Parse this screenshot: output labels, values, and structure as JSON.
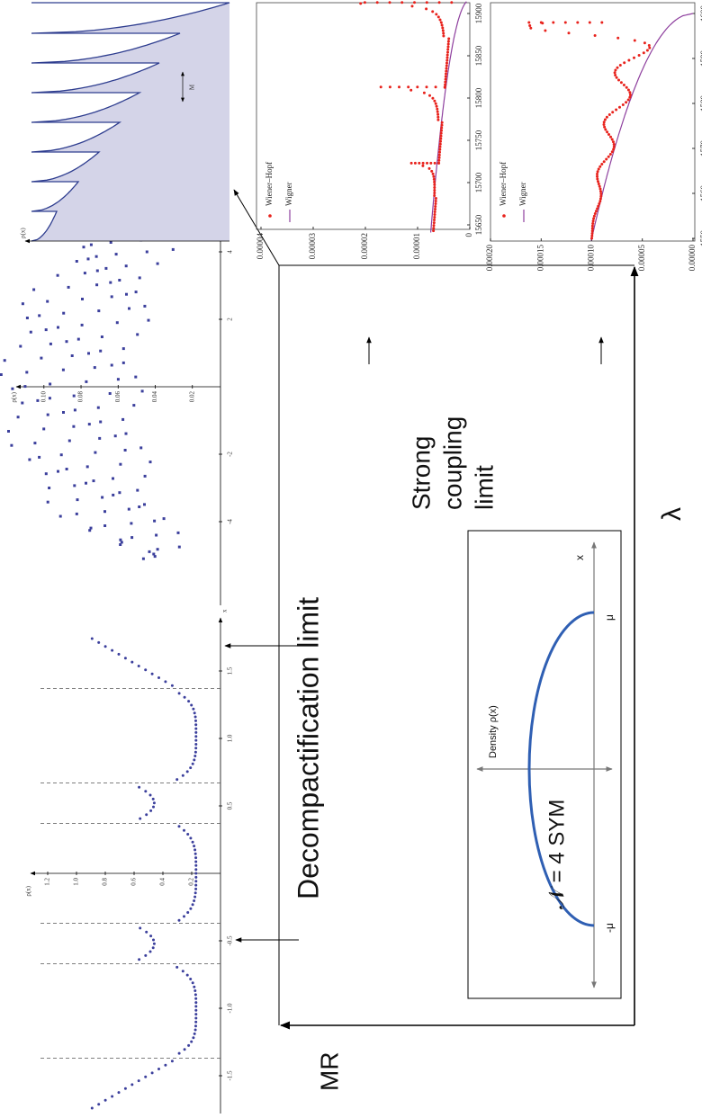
{
  "lattice_plot": {
    "y_label": "ρ(x)",
    "x_label": "x",
    "yticks": [
      "1.2",
      "1.0",
      "0.8",
      "0.6",
      "0.4",
      "0.2"
    ],
    "xticks": [
      "-1.5",
      "-1.0",
      "-0.5",
      "0.5",
      "1.0",
      "1.5"
    ]
  },
  "spread_plot": {
    "y_label": "ρ(x)",
    "x_label": "x",
    "yticks": [
      "0.10",
      "0.08",
      "0.06",
      "0.04",
      "0.02"
    ],
    "xticks": [
      "-4",
      "-2",
      "2",
      "4"
    ]
  },
  "tooth_plot": {
    "y_label": "ρ(x)",
    "marker": "M"
  },
  "wiener_plot_1": {
    "legend": [
      "Wiener–Hopf",
      "Wigner"
    ],
    "yticks": [
      "0.00004",
      "0.00003",
      "0.00002",
      "0.00001",
      "0"
    ],
    "xticks": [
      "15650",
      "15700",
      "15750",
      "15800",
      "15850",
      "15900"
    ]
  },
  "wiener_plot_2": {
    "legend": [
      "Wiener–Hopf",
      "Wigner"
    ],
    "yticks": [
      "0.00020",
      "0.00015",
      "0.00010",
      "0.00005",
      "0.00000"
    ],
    "xticks": [
      "1550",
      "1560",
      "1570",
      "1580",
      "1590",
      "1600"
    ]
  },
  "diagram": {
    "decompactification": "Decompactification limit",
    "strong_coupling": [
      "Strong",
      "coupling",
      "limit"
    ],
    "y_axis": "MR",
    "x_axis": "λ",
    "inset": {
      "title": "𝒩 = 4 SYM",
      "y_label": "Density ρ(x)",
      "x_label": "x",
      "left": "-μ",
      "right": "μ"
    }
  }
}
